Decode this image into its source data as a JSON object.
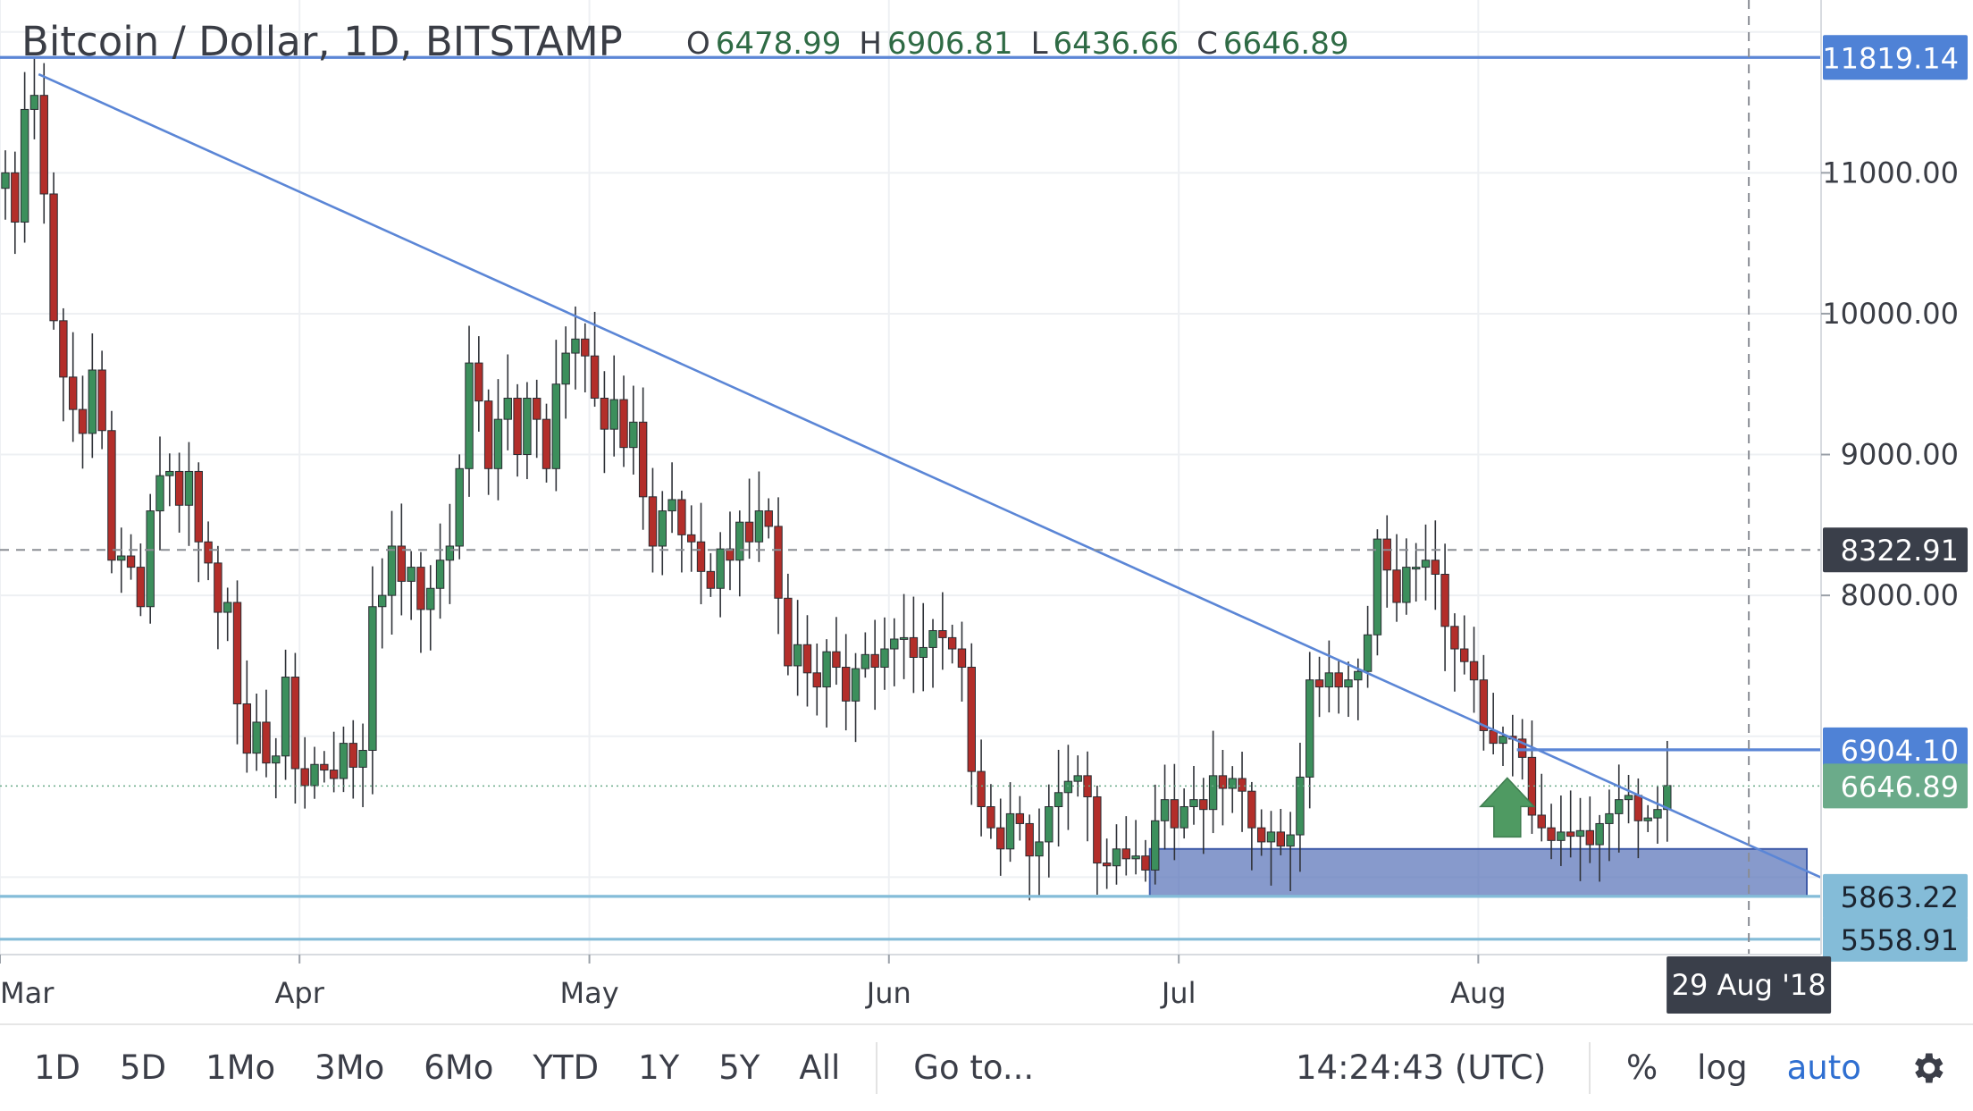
{
  "header": {
    "symbol_title": "Bitcoin / Dollar, 1D, BITSTAMP",
    "ohlc": [
      {
        "key": "O",
        "value": "6478.99"
      },
      {
        "key": "H",
        "value": "6906.81"
      },
      {
        "key": "L",
        "value": "6436.66"
      },
      {
        "key": "C",
        "value": "6646.89"
      }
    ]
  },
  "toolbar": {
    "ranges": [
      "1D",
      "5D",
      "1Mo",
      "3Mo",
      "6Mo",
      "YTD",
      "1Y",
      "5Y",
      "All"
    ],
    "goto_label": "Go to...",
    "clock": "14:24:43 (UTC)",
    "percent_label": "%",
    "log_label": "log",
    "auto_label": "auto",
    "settings_icon": "gear-icon"
  },
  "colors": {
    "up": "#3c8f5c",
    "down": "#b32e2a",
    "trendline": "#5b86d6",
    "support": "#84bcd8",
    "zone_fill": "#5973b8",
    "price_label": "#4f82d6",
    "current_label": "#6bab8a",
    "crosshair_label": "#3a3f4a"
  },
  "chart_data": {
    "type": "candlestick",
    "xlabels": [
      "Mar",
      "Apr",
      "May",
      "Jun",
      "Jul",
      "Aug"
    ],
    "x_start": "2018-03-01",
    "x_end": "2018-09-04",
    "ylim": [
      5450,
      12100
    ],
    "y_ticks": [
      "11000.00",
      "10000.00",
      "9000.00",
      "8000.00"
    ],
    "price_labels": [
      {
        "value": 11819.14,
        "text": "11819.14",
        "kind": "line"
      },
      {
        "value": 8322.91,
        "text": "8322.91",
        "kind": "crosshair"
      },
      {
        "value": 6904.1,
        "text": "6904.10",
        "kind": "line"
      },
      {
        "value": 6646.89,
        "text": "6646.89",
        "kind": "current"
      },
      {
        "value": 5863.22,
        "text": "5863.22",
        "kind": "support"
      },
      {
        "value": 5558.91,
        "text": "5558.91",
        "kind": "support"
      }
    ],
    "crosshair": {
      "date_label": "29 Aug '18",
      "date": "2018-08-29",
      "price": 8322.91
    },
    "trendline": {
      "start_date": "2018-03-05",
      "start_price": 11700,
      "end_date": "2018-09-07",
      "end_price": 5950
    },
    "horizontal_lines": [
      {
        "price": 11819.14,
        "color": "trendline"
      },
      {
        "price": 6904.1,
        "color": "trendline",
        "from_date": "2018-08-05"
      },
      {
        "price": 5863.22,
        "color": "support"
      },
      {
        "price": 5558.91,
        "color": "support"
      }
    ],
    "support_zone": {
      "from_date": "2018-06-28",
      "to_date": "2018-09-04",
      "low": 5860,
      "high": 6200
    },
    "arrow": {
      "date": "2018-08-04",
      "price": 6450,
      "direction": "up"
    },
    "closes": [
      11000,
      10650,
      11450,
      11550,
      10850,
      9950,
      9550,
      9320,
      9150,
      9600,
      9170,
      8250,
      8280,
      8200,
      7920,
      8600,
      8850,
      8880,
      8640,
      8880,
      8380,
      8230,
      7880,
      7950,
      7230,
      6880,
      7100,
      6810,
      6860,
      7420,
      6770,
      6650,
      6800,
      6760,
      6700,
      6950,
      6780,
      6900,
      7920,
      8000,
      8350,
      8100,
      8200,
      7900,
      8050,
      8250,
      8350,
      8900,
      9650,
      9380,
      8900,
      9250,
      9400,
      9000,
      9400,
      9250,
      8900,
      9500,
      9720,
      9820,
      9700,
      9400,
      9180,
      9390,
      9050,
      9230,
      8700,
      8350,
      8600,
      8680,
      8430,
      8380,
      8170,
      8050,
      8330,
      8250,
      8520,
      8380,
      8600,
      8490,
      7980,
      7500,
      7650,
      7450,
      7350,
      7600,
      7490,
      7250,
      7480,
      7580,
      7490,
      7620,
      7690,
      7700,
      7560,
      7630,
      7750,
      7700,
      7620,
      7490,
      6750,
      6500,
      6350,
      6200,
      6450,
      6380,
      6150,
      6250,
      6500,
      6600,
      6680,
      6720,
      6570,
      6100,
      6080,
      6200,
      6130,
      6150,
      6050,
      6400,
      6550,
      6350,
      6500,
      6550,
      6480,
      6720,
      6630,
      6700,
      6610,
      6350,
      6250,
      6320,
      6220,
      6300,
      6710,
      7400,
      7350,
      7450,
      7350,
      7400,
      7460,
      7720,
      8400,
      8180,
      7950,
      8200,
      8200,
      8250,
      8150,
      7780,
      7620,
      7530,
      7400,
      7040,
      6950,
      7000,
      6980,
      6850,
      6440,
      6350,
      6260,
      6320,
      6290,
      6330,
      6230,
      6380,
      6450,
      6550,
      6580,
      6400,
      6420,
      6480,
      6650
    ]
  }
}
